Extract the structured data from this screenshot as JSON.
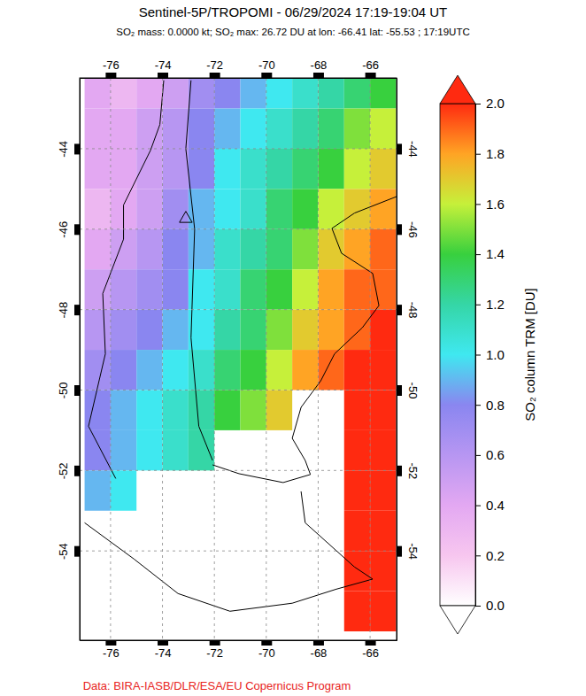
{
  "chart_data": {
    "type": "map",
    "title": "Sentinel-5P/TROPOMI - 06/29/2024 17:19-19:04 UT",
    "subtitle": "SO₂ mass: 0.0000 kt; SO₂ max: 26.72 DU at lon: -66.41 lat: -55.53 ; 17:19UTC",
    "credit": "Data: BIRA-IASB/DLR/ESA/EU Copernicus Program",
    "xlim": [
      -77.19,
      -64.98
    ],
    "ylim": [
      -56.22,
      -42.24
    ],
    "xticks": [
      -76,
      -74,
      -72,
      -70,
      -68,
      -66
    ],
    "yticks": [
      -54,
      -52,
      -50,
      -48,
      -46,
      -44
    ],
    "grid": true,
    "colorbar": {
      "label": "SO₂ column TRM [DU]",
      "range": [
        0,
        2
      ],
      "ticks": [
        {
          "value": 0,
          "label": "0.0"
        },
        {
          "value": 0.2,
          "label": "0.2"
        },
        {
          "value": 0.4,
          "label": "0.4"
        },
        {
          "value": 0.6,
          "label": "0.6"
        },
        {
          "value": 0.8,
          "label": "0.8"
        },
        {
          "value": 1,
          "label": "1.0"
        },
        {
          "value": 1.2,
          "label": "1.2"
        },
        {
          "value": 1.4,
          "label": "1.4"
        },
        {
          "value": 1.6,
          "label": "1.6"
        },
        {
          "value": 1.8,
          "label": "1.8"
        },
        {
          "value": 2,
          "label": "2.0"
        }
      ]
    },
    "cells": {
      "lon_edges": [
        -77,
        -76,
        -75,
        -74,
        -73,
        -72,
        -71,
        -70,
        -69,
        -68,
        -67,
        -66,
        -65
      ],
      "lat_edges": [
        -42,
        -43,
        -44,
        -45,
        -46,
        -47,
        -48,
        -49,
        -50,
        -51,
        -52,
        -53,
        -54,
        -55,
        -56
      ],
      "values": [
        [
          0.4,
          0.3,
          0.4,
          0.5,
          0.7,
          0.8,
          0.9,
          1.0,
          1.1,
          1.2,
          1.3,
          1.4
        ],
        [
          0.4,
          0.4,
          0.5,
          0.6,
          0.8,
          0.9,
          1.0,
          1.1,
          1.2,
          1.3,
          1.5,
          1.6
        ],
        [
          0.4,
          0.4,
          0.5,
          0.6,
          0.8,
          1.0,
          1.1,
          1.2,
          1.3,
          1.4,
          1.6,
          1.7
        ],
        [
          0.3,
          0.4,
          0.5,
          0.7,
          0.9,
          1.0,
          1.1,
          1.3,
          1.4,
          1.6,
          1.7,
          1.8
        ],
        [
          0.4,
          0.5,
          0.6,
          0.8,
          0.9,
          1.1,
          1.2,
          1.3,
          1.5,
          1.7,
          1.8,
          1.9
        ],
        [
          0.5,
          0.6,
          0.7,
          0.8,
          1.0,
          1.1,
          1.3,
          1.4,
          1.6,
          1.8,
          1.9,
          1.9
        ],
        [
          0.6,
          0.7,
          0.8,
          0.9,
          1.0,
          1.2,
          1.3,
          1.5,
          1.7,
          1.8,
          1.9,
          2.0
        ],
        [
          0.7,
          0.8,
          0.9,
          1.0,
          1.1,
          1.3,
          1.4,
          1.6,
          1.8,
          1.9,
          2.0,
          2.0
        ],
        [
          0.8,
          0.9,
          1.0,
          1.1,
          1.2,
          1.4,
          1.5,
          1.7,
          null,
          null,
          2.0,
          2.0
        ],
        [
          0.8,
          0.9,
          1.0,
          1.1,
          1.2,
          null,
          null,
          null,
          null,
          null,
          2.0,
          2.0
        ],
        [
          0.9,
          1.0,
          null,
          null,
          null,
          null,
          null,
          null,
          null,
          null,
          2.0,
          2.0
        ],
        [
          null,
          null,
          null,
          null,
          null,
          null,
          null,
          null,
          null,
          null,
          2.0,
          2.0
        ],
        [
          null,
          null,
          null,
          null,
          null,
          null,
          null,
          null,
          null,
          null,
          2.0,
          2.0
        ],
        [
          null,
          null,
          null,
          null,
          null,
          null,
          null,
          null,
          null,
          null,
          2.0,
          2.0
        ]
      ]
    },
    "coastlines": [
      [
        [
          -64.98,
          -45.19
        ],
        [
          -66.6,
          -45.6
        ],
        [
          -67.47,
          -45.98
        ],
        [
          -67.1,
          -46.6
        ],
        [
          -65.9,
          -47.1
        ],
        [
          -65.66,
          -47.9
        ],
        [
          -66.3,
          -48.45
        ],
        [
          -67.37,
          -49.1
        ],
        [
          -67.9,
          -49.77
        ],
        [
          -68.66,
          -50.43
        ],
        [
          -69.0,
          -51.2
        ],
        [
          -68.5,
          -51.75
        ],
        [
          -68.3,
          -52.1
        ],
        [
          -69.35,
          -52.3
        ],
        [
          -71.05,
          -52.08
        ],
        [
          -72.07,
          -51.86
        ]
      ],
      [
        [
          -68.66,
          -52.52
        ],
        [
          -68.5,
          -53.3
        ],
        [
          -66.6,
          -54.4
        ],
        [
          -65.9,
          -54.7
        ],
        [
          -67.3,
          -54.95
        ],
        [
          -69.0,
          -55.3
        ],
        [
          -71.4,
          -55.5
        ],
        [
          -73.4,
          -55.06
        ],
        [
          -75.1,
          -54.2
        ],
        [
          -77.0,
          -53.3
        ]
      ],
      [
        [
          -75.8,
          -52.2
        ],
        [
          -76.85,
          -50.9
        ],
        [
          -76.2,
          -49.1
        ],
        [
          -76.3,
          -47.6
        ],
        [
          -75.5,
          -46.25
        ],
        [
          -75.5,
          -45.4
        ],
        [
          -74.46,
          -44.04
        ],
        [
          -74.1,
          -43.4
        ],
        [
          -73.95,
          -42.3
        ]
      ],
      [
        [
          -72.9,
          -42.3
        ],
        [
          -73.1,
          -44.0
        ],
        [
          -72.76,
          -46.0
        ],
        [
          -72.9,
          -48.7
        ],
        [
          -72.6,
          -50.9
        ],
        [
          -72.07,
          -51.75
        ]
      ]
    ],
    "markers": [
      {
        "lon": -73.1,
        "lat": -45.74,
        "marker": "triangle"
      }
    ]
  }
}
